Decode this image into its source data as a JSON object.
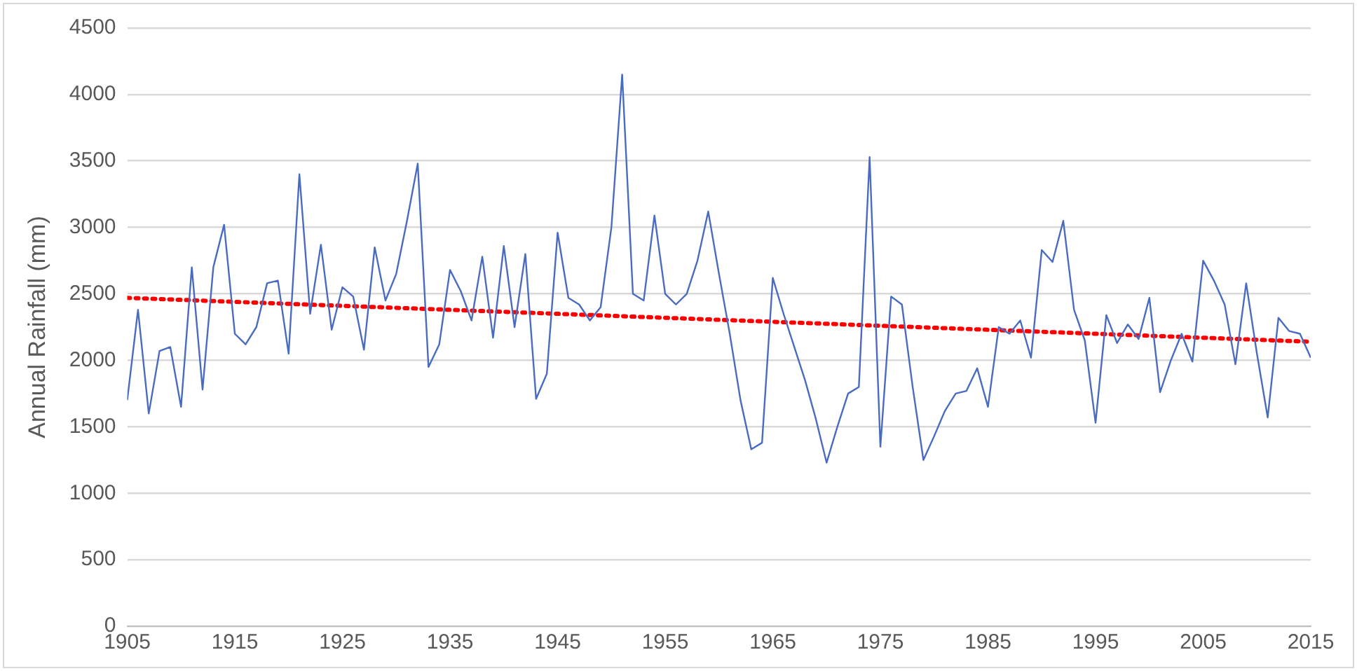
{
  "chart_data": {
    "type": "line",
    "ylabel": "Annual Rainfall (mm)",
    "xlim": [
      1905,
      2015
    ],
    "xticks": [
      1905,
      1915,
      1925,
      1935,
      1945,
      1955,
      1965,
      1975,
      1985,
      1995,
      2005,
      2015
    ],
    "ylim": [
      0,
      4500
    ],
    "yticks": [
      0,
      500,
      1000,
      1500,
      2000,
      2500,
      3000,
      3500,
      4000,
      4500
    ],
    "grid": "y",
    "legend": false,
    "marker": "none",
    "x": [
      1905,
      1906,
      1907,
      1908,
      1909,
      1910,
      1911,
      1912,
      1913,
      1914,
      1915,
      1916,
      1917,
      1918,
      1919,
      1920,
      1921,
      1922,
      1923,
      1924,
      1925,
      1926,
      1927,
      1928,
      1929,
      1930,
      1931,
      1932,
      1933,
      1934,
      1935,
      1936,
      1937,
      1938,
      1939,
      1940,
      1941,
      1942,
      1943,
      1944,
      1945,
      1946,
      1947,
      1948,
      1949,
      1950,
      1951,
      1952,
      1953,
      1954,
      1955,
      1956,
      1957,
      1958,
      1959,
      1960,
      1961,
      1962,
      1963,
      1964,
      1965,
      1966,
      1967,
      1968,
      1969,
      1970,
      1971,
      1972,
      1973,
      1974,
      1975,
      1976,
      1977,
      1978,
      1979,
      1980,
      1981,
      1982,
      1983,
      1984,
      1985,
      1986,
      1987,
      1988,
      1989,
      1990,
      1991,
      1992,
      1993,
      1994,
      1995,
      1996,
      1997,
      1998,
      1999,
      2000,
      2001,
      2002,
      2003,
      2004,
      2005,
      2006,
      2007,
      2008,
      2009,
      2010,
      2011,
      2012,
      2013,
      2014,
      2015
    ],
    "series": [
      {
        "color": "#4a6cc0",
        "line_style": "solid",
        "values": [
          1700,
          2380,
          1600,
          2070,
          2100,
          1650,
          2700,
          1780,
          2700,
          3020,
          2200,
          2120,
          2250,
          2580,
          2600,
          2050,
          3400,
          2350,
          2870,
          2230,
          2550,
          2480,
          2080,
          2850,
          2450,
          2650,
          3050,
          3480,
          1950,
          2120,
          2680,
          2520,
          2300,
          2780,
          2170,
          2860,
          2250,
          2800,
          1710,
          1900,
          2960,
          2470,
          2420,
          2300,
          2400,
          3000,
          4150,
          2500,
          2450,
          3090,
          2500,
          2420,
          2500,
          2750,
          3120,
          2650,
          2200,
          1700,
          1330,
          1380,
          2620,
          2350,
          2100,
          1850,
          1560,
          1230,
          1500,
          1750,
          1800,
          3530,
          1350,
          2480,
          2420,
          1800,
          1250,
          1430,
          1620,
          1750,
          1770,
          1940,
          1650,
          2250,
          2200,
          2300,
          2020,
          2830,
          2740,
          3050,
          2380,
          2150,
          1530,
          2340,
          2130,
          2270,
          2160,
          2470,
          1760,
          2000,
          2200,
          1990,
          2750,
          2600,
          2420,
          1970,
          2580,
          2050,
          1570,
          2320,
          2220,
          2200,
          2020
        ]
      },
      {
        "color": "#ff0000",
        "line_style": "dotted",
        "x": [
          1905,
          2015
        ],
        "values": [
          2470,
          2140
        ]
      }
    ]
  }
}
